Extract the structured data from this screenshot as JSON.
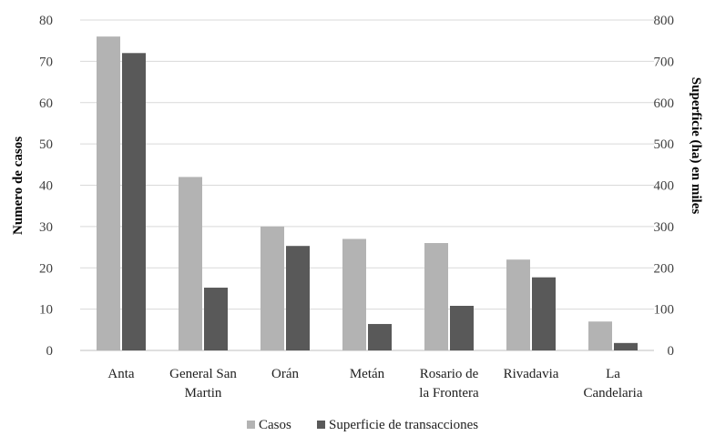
{
  "chart_data": {
    "type": "bar",
    "categories": [
      [
        "Anta"
      ],
      [
        "General San",
        "Martin"
      ],
      [
        "Orán"
      ],
      [
        "Metán"
      ],
      [
        "Rosario de",
        "la Frontera"
      ],
      [
        "Rivadavia"
      ],
      [
        "La",
        "Candelaria"
      ]
    ],
    "series": [
      {
        "name": "Casos",
        "axis": "left",
        "color": "#b3b3b3",
        "values": [
          76,
          42,
          30,
          27,
          26,
          22,
          7
        ]
      },
      {
        "name": "Superficie de transacciones",
        "axis": "right",
        "color": "#595959",
        "values": [
          720,
          152,
          253,
          64,
          108,
          177,
          18
        ]
      }
    ],
    "ylabel_left": "Numero de casos",
    "ylabel_right": "Superficie (ha) en miles",
    "ylim_left": [
      0,
      80
    ],
    "ylim_right": [
      0,
      800
    ],
    "yticks_left": [
      "0",
      "10",
      "20",
      "30",
      "40",
      "50",
      "60",
      "70",
      "80"
    ],
    "yticks_right": [
      "0",
      "100",
      "200",
      "300",
      "400",
      "500",
      "600",
      "700",
      "800"
    ],
    "grid": true,
    "legend_position": "bottom"
  }
}
